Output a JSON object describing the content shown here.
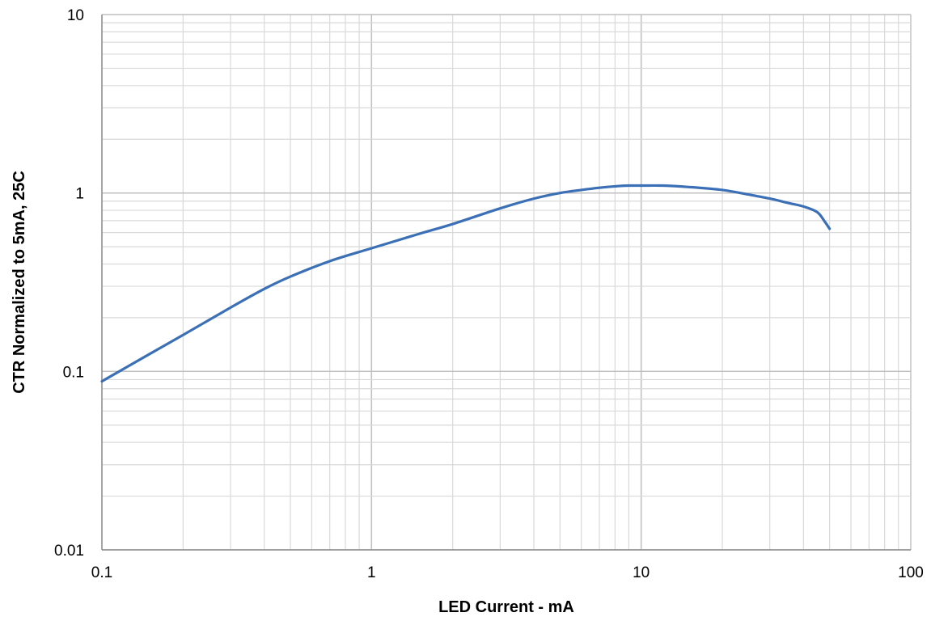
{
  "chart_data": {
    "type": "line",
    "title": "",
    "xlabel": "LED Current - mA",
    "ylabel": "CTR Normalized to 5mA, 25C",
    "xscale": "log",
    "yscale": "log",
    "xlim": [
      0.1,
      100
    ],
    "ylim": [
      0.01,
      10
    ],
    "x_tick_labels": [
      "0.1",
      "1",
      "10",
      "100"
    ],
    "y_tick_labels": [
      "0.01",
      "0.1",
      "1",
      "10"
    ],
    "grid": true,
    "legend": "none",
    "series": [
      {
        "color": "#3b6fb6",
        "x": [
          0.1,
          0.15,
          0.2,
          0.3,
          0.4,
          0.5,
          0.7,
          1,
          1.5,
          2,
          3,
          4,
          5,
          6,
          7,
          8,
          9,
          10,
          12,
          15,
          20,
          25,
          30,
          35,
          40,
          45,
          48,
          50
        ],
        "y": [
          0.088,
          0.125,
          0.16,
          0.228,
          0.29,
          0.34,
          0.415,
          0.49,
          0.59,
          0.67,
          0.82,
          0.93,
          1.0,
          1.04,
          1.07,
          1.09,
          1.1,
          1.1,
          1.1,
          1.08,
          1.04,
          0.98,
          0.93,
          0.88,
          0.84,
          0.78,
          0.69,
          0.63
        ]
      }
    ]
  }
}
